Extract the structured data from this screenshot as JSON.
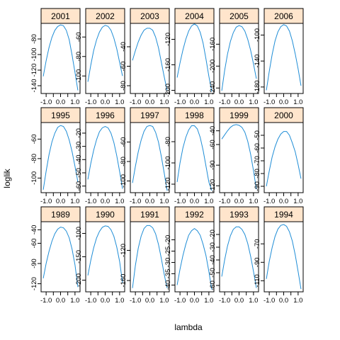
{
  "chart_data": {
    "type": "line",
    "layout": "lattice 6 x 3",
    "xlabel": "lambda",
    "ylabel": "loglik",
    "colors": {
      "line": "#1f8dd6",
      "strip": "#ffe5cc",
      "frame": "#000000"
    },
    "x_ticks": [
      -1.0,
      -0.5,
      0.0,
      0.5,
      1.0
    ],
    "x_tick_labels": [
      "-1.0",
      "",
      "0.0",
      "",
      "1.0"
    ],
    "panels": [
      {
        "label": "2001",
        "yticks": [
          -140,
          -120,
          -100,
          -80
        ],
        "ylim": [
          -150,
          -60
        ],
        "x": [
          -1.2,
          -1.0,
          -0.8,
          -0.6,
          -0.4,
          -0.2,
          0.0,
          0.2,
          0.4,
          0.6,
          0.8,
          1.0,
          1.2
        ],
        "y": [
          -128,
          -108,
          -91,
          -78,
          -69,
          -64,
          -62,
          -63,
          -69,
          -81,
          -101,
          -123,
          -146
        ]
      },
      {
        "label": "2002",
        "yticks": [
          -100,
          -80,
          -60
        ],
        "ylim": [
          -118,
          -46
        ],
        "x": [
          -1.2,
          -1.0,
          -0.8,
          -0.6,
          -0.4,
          -0.2,
          0.0,
          0.2,
          0.4,
          0.6,
          0.8,
          1.0,
          1.2
        ],
        "y": [
          -106,
          -89,
          -74,
          -63,
          -55,
          -50,
          -48,
          -49,
          -53,
          -61,
          -72,
          -86,
          -100
        ]
      },
      {
        "label": "2003",
        "yticks": [
          -80,
          -60,
          -40
        ],
        "ylim": [
          -88,
          -16
        ],
        "x": [
          -1.2,
          -1.0,
          -0.8,
          -0.6,
          -0.4,
          -0.2,
          0.0,
          0.2,
          0.4,
          0.6,
          0.8,
          1.0,
          1.2
        ],
        "y": [
          -54,
          -44,
          -35,
          -28,
          -23,
          -21,
          -21,
          -23,
          -30,
          -41,
          -56,
          -71,
          -85
        ]
      },
      {
        "label": "2004",
        "yticks": [
          -200,
          -160,
          -120
        ],
        "ylim": [
          -205,
          -95
        ],
        "x": [
          -1.2,
          -1.0,
          -0.8,
          -0.6,
          -0.4,
          -0.2,
          0.0,
          0.2,
          0.4,
          0.6,
          0.8,
          1.0,
          1.2
        ],
        "y": [
          -180,
          -157,
          -137,
          -120,
          -107,
          -99,
          -96,
          -99,
          -109,
          -126,
          -151,
          -178,
          -202
        ]
      },
      {
        "label": "2005",
        "yticks": [
          -240,
          -200,
          -160
        ],
        "ylim": [
          -250,
          -122
        ],
        "x": [
          -1.2,
          -1.0,
          -0.8,
          -0.6,
          -0.4,
          -0.2,
          0.0,
          0.2,
          0.4,
          0.6,
          0.8,
          1.0,
          1.2
        ],
        "y": [
          -245,
          -208,
          -178,
          -155,
          -139,
          -129,
          -126,
          -128,
          -136,
          -151,
          -171,
          -196,
          -223
        ]
      },
      {
        "label": "2006",
        "yticks": [
          -180,
          -140,
          -100
        ],
        "ylim": [
          -190,
          -82
        ],
        "x": [
          -1.2,
          -1.0,
          -0.8,
          -0.6,
          -0.4,
          -0.2,
          0.0,
          0.2,
          0.4,
          0.6,
          0.8,
          1.0,
          1.2
        ],
        "y": [
          -185,
          -156,
          -130,
          -109,
          -95,
          -87,
          -84,
          -86,
          -94,
          -109,
          -129,
          -152,
          -178
        ]
      },
      {
        "label": "1995",
        "yticks": [
          -100,
          -80,
          -60
        ],
        "ylim": [
          -115,
          -43
        ],
        "x": [
          -1.2,
          -1.0,
          -0.8,
          -0.6,
          -0.4,
          -0.2,
          0.0,
          0.2,
          0.4,
          0.6,
          0.8,
          1.0,
          1.2
        ],
        "y": [
          -112,
          -93,
          -76,
          -63,
          -54,
          -48,
          -46,
          -47,
          -52,
          -61,
          -73,
          -88,
          -104
        ]
      },
      {
        "label": "1996",
        "yticks": [
          -60,
          -50,
          -40,
          -30,
          -20
        ],
        "ylim": [
          -65,
          -12
        ],
        "x": [
          -1.2,
          -1.0,
          -0.8,
          -0.6,
          -0.4,
          -0.2,
          0.0,
          0.2,
          0.4,
          0.6,
          0.8,
          1.0,
          1.2
        ],
        "y": [
          -55,
          -43,
          -33,
          -25,
          -19,
          -16,
          -15,
          -16,
          -20,
          -27,
          -37,
          -49,
          -62
        ]
      },
      {
        "label": "1997",
        "yticks": [
          -100,
          -80,
          -60
        ],
        "ylim": [
          -112,
          -40
        ],
        "x": [
          -1.2,
          -1.0,
          -0.8,
          -0.6,
          -0.4,
          -0.2,
          0.0,
          0.2,
          0.4,
          0.6,
          0.8,
          1.0,
          1.2
        ],
        "y": [
          -102,
          -85,
          -70,
          -58,
          -49,
          -44,
          -43,
          -44,
          -50,
          -60,
          -75,
          -92,
          -110
        ]
      },
      {
        "label": "1998",
        "yticks": [
          -120,
          -100,
          -80
        ],
        "ylim": [
          -128,
          -62
        ],
        "x": [
          -1.2,
          -1.0,
          -0.8,
          -0.6,
          -0.4,
          -0.2,
          0.0,
          0.2,
          0.4,
          0.6,
          0.8,
          1.0,
          1.2
        ],
        "y": [
          -118,
          -100,
          -86,
          -76,
          -69,
          -65,
          -65,
          -68,
          -76,
          -88,
          -103,
          -118,
          -126
        ]
      },
      {
        "label": "1999",
        "yticks": [
          -120,
          -90,
          -60,
          -40
        ],
        "ylim": [
          -130,
          -28
        ],
        "x": [
          -1.2,
          -1.0,
          -0.8,
          -0.6,
          -0.4,
          -0.2,
          0.0,
          0.2,
          0.4,
          0.6,
          0.8,
          1.0,
          1.2
        ],
        "y": [
          -52,
          -46,
          -40,
          -35,
          -32,
          -31,
          -32,
          -35,
          -42,
          -55,
          -74,
          -98,
          -125
        ]
      },
      {
        "label": "2000",
        "yticks": [
          -90,
          -80,
          -70,
          -60,
          -50
        ],
        "ylim": [
          -95,
          -40
        ],
        "x": [
          -1.2,
          -1.0,
          -0.8,
          -0.6,
          -0.4,
          -0.2,
          0.0,
          0.2,
          0.4,
          0.6,
          0.8,
          1.0,
          1.2
        ],
        "y": [
          -90,
          -78,
          -67,
          -59,
          -53,
          -49,
          -47,
          -47,
          -50,
          -56,
          -63,
          -73,
          -84
        ]
      },
      {
        "label": "1989",
        "yticks": [
          -120,
          -90,
          -60,
          -40
        ],
        "ylim": [
          -132,
          -28
        ],
        "x": [
          -1.2,
          -1.0,
          -0.8,
          -0.6,
          -0.4,
          -0.2,
          0.0,
          0.2,
          0.4,
          0.6,
          0.8,
          1.0,
          1.2
        ],
        "y": [
          -112,
          -90,
          -72,
          -57,
          -46,
          -39,
          -36,
          -37,
          -42,
          -52,
          -69,
          -92,
          -125
        ]
      },
      {
        "label": "1990",
        "yticks": [
          -200,
          -150,
          -100
        ],
        "ylim": [
          -225,
          -75
        ],
        "x": [
          -1.2,
          -1.0,
          -0.8,
          -0.6,
          -0.4,
          -0.2,
          0.0,
          0.2,
          0.4,
          0.6,
          0.8,
          1.0,
          1.2
        ],
        "y": [
          -190,
          -158,
          -131,
          -110,
          -96,
          -87,
          -84,
          -85,
          -92,
          -106,
          -129,
          -160,
          -205
        ]
      },
      {
        "label": "1991",
        "yticks": [
          -160,
          -120
        ],
        "ylim": [
          -175,
          -82
        ],
        "x": [
          -1.2,
          -1.0,
          -0.8,
          -0.6,
          -0.4,
          -0.2,
          0.0,
          0.2,
          0.4,
          0.6,
          0.8,
          1.0,
          1.2
        ],
        "y": [
          -170,
          -140,
          -117,
          -101,
          -91,
          -87,
          -87,
          -90,
          -98,
          -112,
          -131,
          -152,
          -170
        ]
      },
      {
        "label": "1992",
        "yticks": [
          -40,
          -35,
          -30,
          -25,
          -20
        ],
        "ylim": [
          -43,
          -12
        ],
        "x": [
          -1.2,
          -1.0,
          -0.8,
          -0.6,
          -0.4,
          -0.2,
          0.0,
          0.2,
          0.4,
          0.6,
          0.8,
          1.0,
          1.2
        ],
        "y": [
          -40,
          -33,
          -27,
          -22,
          -18,
          -16,
          -15,
          -16,
          -18,
          -22,
          -27,
          -34,
          -42
        ]
      },
      {
        "label": "1993",
        "yticks": [
          -60,
          -50,
          -40,
          -30,
          -20
        ],
        "ylim": [
          -65,
          -10
        ],
        "x": [
          -1.2,
          -1.0,
          -0.8,
          -0.6,
          -0.4,
          -0.2,
          0.0,
          0.2,
          0.4,
          0.6,
          0.8,
          1.0,
          1.2
        ],
        "y": [
          -53,
          -40,
          -29,
          -21,
          -16,
          -14,
          -14,
          -16,
          -20,
          -27,
          -37,
          -49,
          -62
        ]
      },
      {
        "label": "1994",
        "yticks": [
          -110,
          -90,
          -70
        ],
        "ylim": [
          -122,
          -46
        ],
        "x": [
          -1.2,
          -1.0,
          -0.8,
          -0.6,
          -0.4,
          -0.2,
          0.0,
          0.2,
          0.4,
          0.6,
          0.8,
          1.0,
          1.2
        ],
        "y": [
          -108,
          -89,
          -74,
          -62,
          -54,
          -50,
          -49,
          -51,
          -57,
          -67,
          -82,
          -100,
          -119
        ]
      }
    ]
  }
}
